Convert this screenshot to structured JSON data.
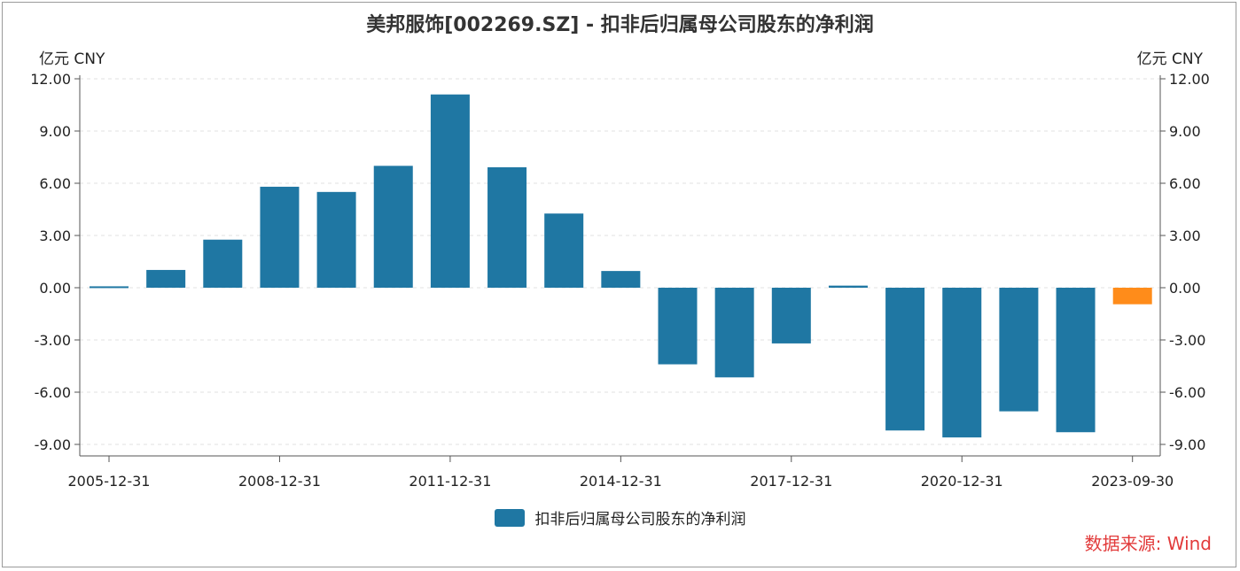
{
  "chart_data": {
    "type": "bar",
    "title": "美邦服饰[002269.SZ] - 扣非后归属母公司股东的净利润",
    "unit_left": "亿元  CNY",
    "unit_right": "亿元  CNY",
    "ylim": [
      -10.0,
      12.0
    ],
    "yticks": [
      "12.00",
      "9.00",
      "6.00",
      "3.00",
      "0.00",
      "-3.00",
      "-6.00",
      "-9.00"
    ],
    "ytick_values": [
      12,
      9,
      6,
      3,
      0,
      -3,
      -6,
      -9
    ],
    "x_tick_labels": [
      "2005-12-31",
      "2008-12-31",
      "2011-12-31",
      "2014-12-31",
      "2017-12-31",
      "2020-12-31",
      "2023-09-30"
    ],
    "x_tick_indices": [
      0,
      3,
      6,
      9,
      12,
      15,
      18
    ],
    "categories": [
      "2005-12-31",
      "2006-12-31",
      "2007-12-31",
      "2008-12-31",
      "2009-12-31",
      "2010-12-31",
      "2011-12-31",
      "2012-12-31",
      "2013-12-31",
      "2014-12-31",
      "2015-12-31",
      "2016-12-31",
      "2017-12-31",
      "2018-12-31",
      "2019-12-31",
      "2020-12-31",
      "2021-12-31",
      "2022-12-31",
      "2023-09-30"
    ],
    "series": [
      {
        "name": "扣非后归属母公司股东的净利润",
        "values": [
          0.08,
          1.02,
          2.76,
          5.8,
          5.5,
          7.0,
          11.1,
          6.92,
          4.26,
          0.96,
          -4.4,
          -5.15,
          -3.2,
          0.12,
          -8.2,
          -8.6,
          -7.1,
          -8.3,
          -0.95
        ],
        "color": "#1f77a3",
        "highlight_color": "#ff8c1a",
        "highlight_index": 18
      }
    ],
    "legend_position": "bottom-center",
    "grid": true,
    "source": "数据来源: Wind"
  }
}
